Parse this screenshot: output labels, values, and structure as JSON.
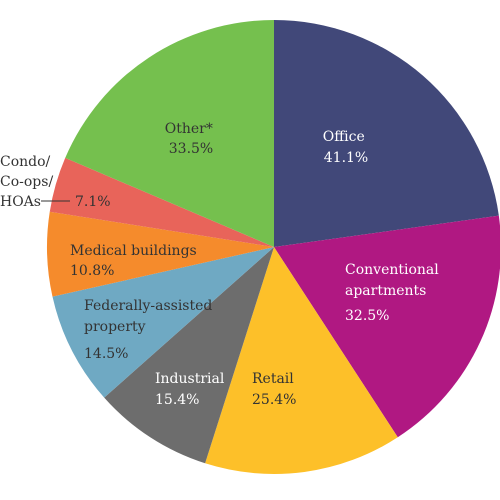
{
  "chart_data": {
    "type": "pie",
    "title": "",
    "slices": [
      {
        "label": "Office",
        "value_label": "41.1%",
        "value": 41.1,
        "color": "#414879",
        "text_color": "#ffffff"
      },
      {
        "label": "Conventional apartments",
        "value_label": "32.5%",
        "value": 32.5,
        "color": "#b01882",
        "text_color": "#ffffff"
      },
      {
        "label": "Retail",
        "value_label": "25.4%",
        "value": 25.4,
        "color": "#fdc029",
        "text_color": "#333333"
      },
      {
        "label": "Industrial",
        "value_label": "15.4%",
        "value": 15.4,
        "color": "#6d6d6d",
        "text_color": "#ffffff"
      },
      {
        "label": "Federally-assisted property",
        "value_label": "14.5%",
        "value": 14.5,
        "color": "#6fa9c3",
        "text_color": "#333333"
      },
      {
        "label": "Medical buildings",
        "value_label": "10.8%",
        "value": 10.8,
        "color": "#f58b2c",
        "text_color": "#333333"
      },
      {
        "label": "Condo/ Co-ops/ HOAs",
        "value_label": "7.1%",
        "value": 7.1,
        "color": "#e8645a",
        "text_color": "#333333"
      },
      {
        "label": "Other*",
        "value_label": "33.5%",
        "value": 33.5,
        "color": "#75c04e",
        "text_color": "#333333"
      }
    ]
  }
}
